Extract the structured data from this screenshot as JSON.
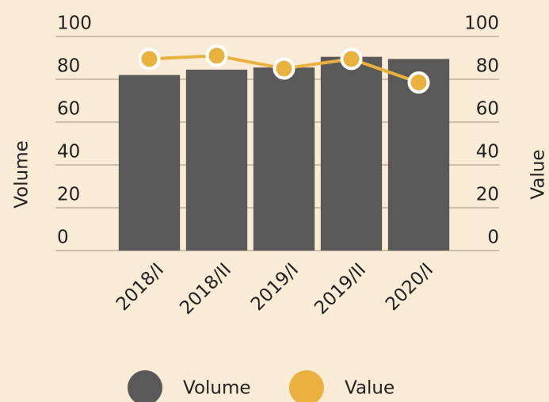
{
  "chart_data": {
    "type": "bar-line",
    "categories": [
      "2018/I",
      "2018/II",
      "2019/I",
      "2019/II",
      "2020/I"
    ],
    "series": [
      {
        "name": "Volume",
        "type": "bar",
        "color": "#595959",
        "axis": "y",
        "values": [
          82,
          84.5,
          85.5,
          90.5,
          89.5
        ]
      },
      {
        "name": "Value",
        "type": "line",
        "color": "#e9b23f",
        "axis": "y2",
        "values": [
          89.5,
          91,
          85,
          89.5,
          78.5
        ]
      }
    ],
    "ylabel": "Volume",
    "y2label": "Value",
    "ylim": [
      0,
      100
    ],
    "yticks": [
      0,
      20,
      40,
      60,
      80,
      100
    ],
    "y2lim": [
      0,
      100
    ],
    "y2ticks": [
      0,
      20,
      40,
      60,
      80,
      100
    ],
    "grid": true,
    "legend": "bottom"
  }
}
